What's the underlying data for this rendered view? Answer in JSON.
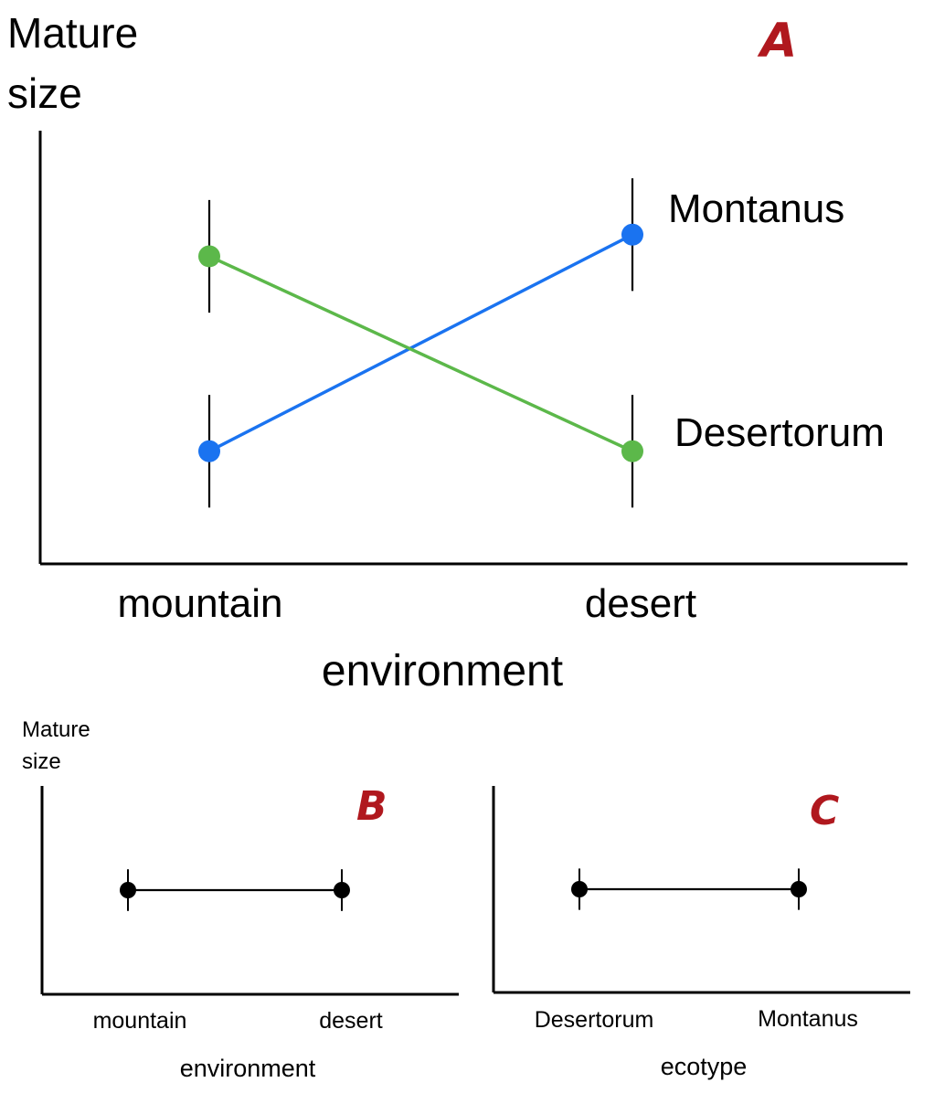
{
  "colors": {
    "panel_letter": "#b0181e",
    "axis": "#000000",
    "montanus": "#1a73f0",
    "desertorum": "#5cb84a",
    "plain": "#000000"
  },
  "chart_data": [
    {
      "panel": "A",
      "type": "line",
      "ylabel_line1": "Mature",
      "ylabel_line2": "size",
      "xlabel": "environment",
      "categories": [
        "mountain",
        "desert"
      ],
      "ylim": [
        0,
        10
      ],
      "series": [
        {
          "name": "Montanus",
          "color_key": "montanus",
          "values": [
            2.6,
            7.6
          ],
          "error": [
            1.3,
            1.3
          ]
        },
        {
          "name": "Desertorum",
          "color_key": "desertorum",
          "values": [
            7.1,
            2.6
          ],
          "error": [
            1.3,
            1.3
          ]
        }
      ],
      "grid": false,
      "legend": "end-of-line labels"
    },
    {
      "panel": "B",
      "type": "line",
      "ylabel_line1": "Mature",
      "ylabel_line2": "size",
      "xlabel": "environment",
      "categories": [
        "mountain",
        "desert"
      ],
      "ylim": [
        0,
        10
      ],
      "series": [
        {
          "color_key": "plain",
          "values": [
            5,
            5
          ],
          "error": [
            1,
            1
          ]
        }
      ],
      "grid": false
    },
    {
      "panel": "C",
      "type": "line",
      "xlabel": "ecotype",
      "categories": [
        "Desertorum",
        "Montanus"
      ],
      "ylim": [
        0,
        10
      ],
      "series": [
        {
          "color_key": "plain",
          "values": [
            5,
            5
          ],
          "error": [
            1,
            1
          ]
        }
      ],
      "grid": false
    }
  ]
}
